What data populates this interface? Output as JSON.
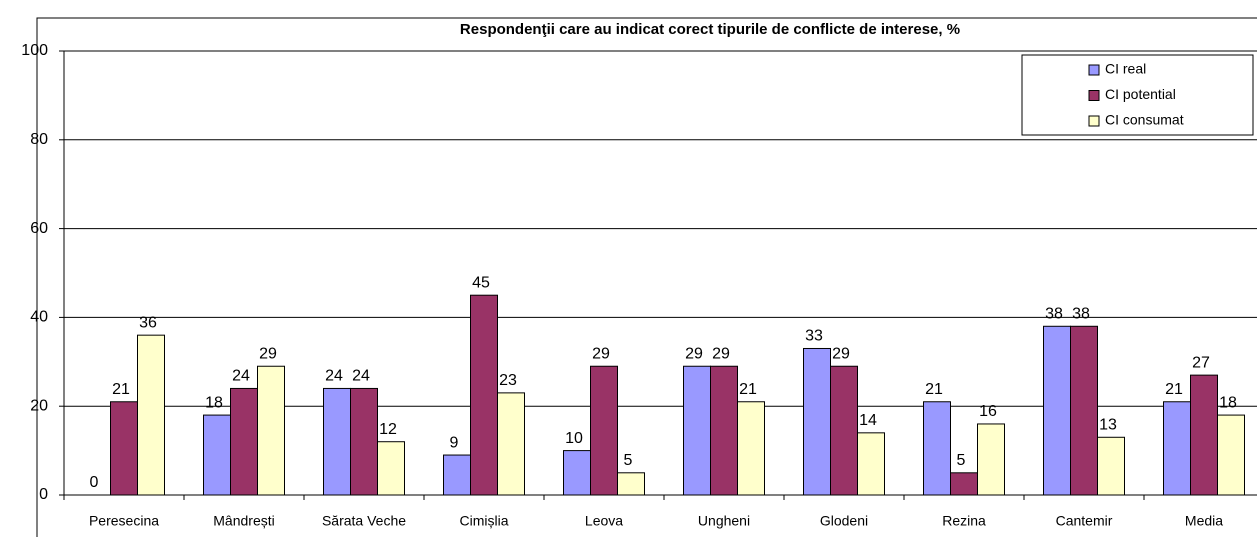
{
  "chart_data": {
    "type": "bar",
    "title": "Respondenţii care au indicat corect tipurile de conflicte de interese, %",
    "categories": [
      "Peresecina",
      "Mândrești",
      "Sărata Veche",
      "Cimișlia",
      "Leova",
      "Ungheni",
      "Glodeni",
      "Rezina",
      "Cantemir",
      "Media"
    ],
    "series": [
      {
        "name": "CI real",
        "color": "#9999ff",
        "values": [
          0,
          18,
          24,
          9,
          10,
          29,
          33,
          21,
          38,
          21
        ]
      },
      {
        "name": "CI potential",
        "color": "#993366",
        "values": [
          21,
          24,
          24,
          45,
          29,
          29,
          29,
          5,
          38,
          27
        ]
      },
      {
        "name": "CI consumat",
        "color": "#ffffcc",
        "values": [
          36,
          29,
          12,
          23,
          5,
          21,
          14,
          16,
          13,
          18
        ]
      }
    ],
    "ylim": [
      0,
      100
    ],
    "yticks": [
      0,
      20,
      40,
      60,
      80,
      100
    ],
    "grid": true,
    "legend": "upper right"
  }
}
